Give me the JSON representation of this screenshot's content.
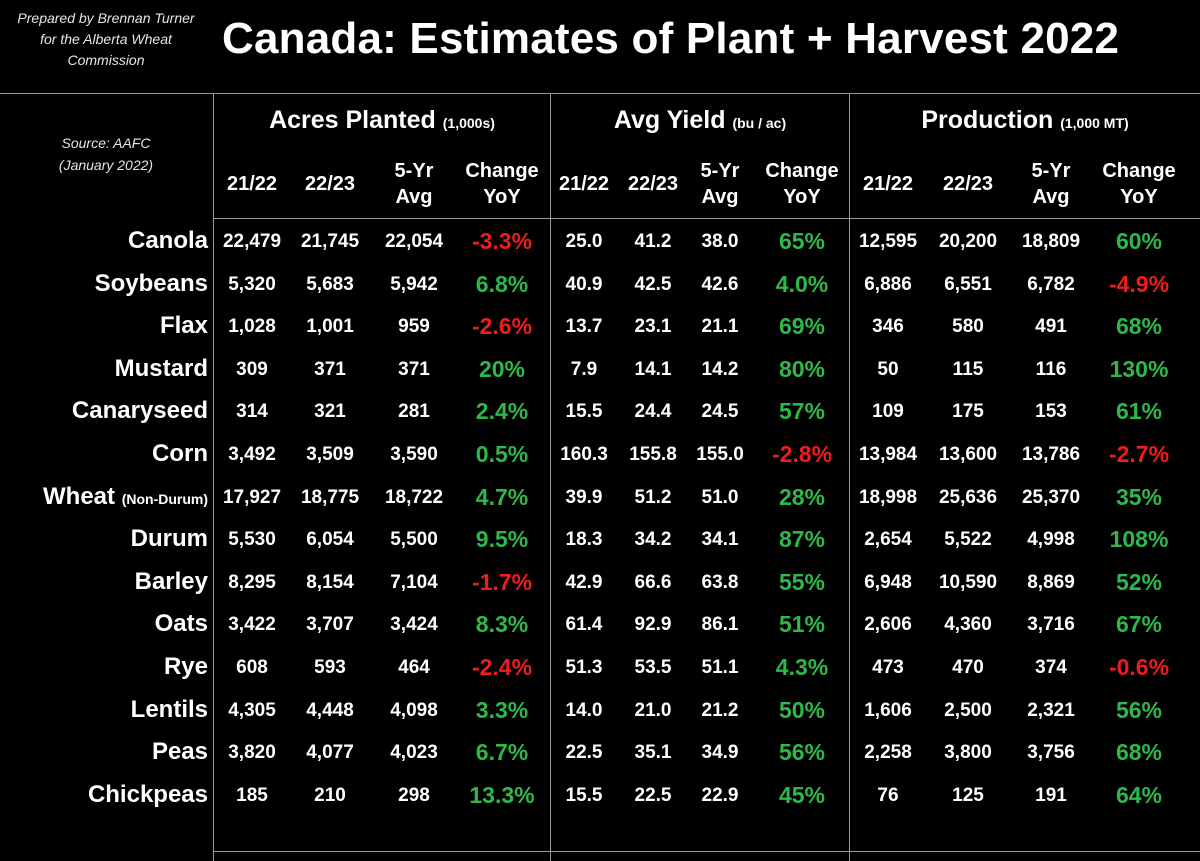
{
  "header": {
    "credit_lines": [
      "Prepared by Brennan Turner",
      "for the Alberta Wheat",
      "Commission"
    ],
    "title": "Canada: Estimates of Plant + Harvest 2022",
    "source_lines": [
      "Source: AAFC",
      "(January 2022)"
    ]
  },
  "colors": {
    "positive": "#2eb84a",
    "negative": "#ee1c1c",
    "background": "#000000",
    "text": "#ffffff",
    "grid": "#9a9a9a"
  },
  "chart_data": {
    "type": "table",
    "title": "Canada: Estimates of Plant + Harvest 2022",
    "groups": [
      {
        "key": "acres",
        "label": "Acres Planted",
        "unit": "(1,000s)"
      },
      {
        "key": "yield",
        "label": "Avg Yield",
        "unit": "(bu / ac)"
      },
      {
        "key": "production",
        "label": "Production",
        "unit": "(1,000 MT)"
      }
    ],
    "columns": [
      {
        "line1": "21/22",
        "line2": ""
      },
      {
        "line1": "22/23",
        "line2": ""
      },
      {
        "line1": "5-Yr",
        "line2": "Avg"
      },
      {
        "line1": "Change",
        "line2": "YoY"
      }
    ],
    "rows": [
      {
        "crop": "Canola",
        "note": "",
        "acres": [
          "22,479",
          "21,745",
          "22,054",
          "-3.3%"
        ],
        "yield": [
          "25.0",
          "41.2",
          "38.0",
          "65%"
        ],
        "production": [
          "12,595",
          "20,200",
          "18,809",
          "60%"
        ]
      },
      {
        "crop": "Soybeans",
        "note": "",
        "acres": [
          "5,320",
          "5,683",
          "5,942",
          "6.8%"
        ],
        "yield": [
          "40.9",
          "42.5",
          "42.6",
          "4.0%"
        ],
        "production": [
          "6,886",
          "6,551",
          "6,782",
          "-4.9%"
        ]
      },
      {
        "crop": "Flax",
        "note": "",
        "acres": [
          "1,028",
          "1,001",
          "959",
          "-2.6%"
        ],
        "yield": [
          "13.7",
          "23.1",
          "21.1",
          "69%"
        ],
        "production": [
          "346",
          "580",
          "491",
          "68%"
        ]
      },
      {
        "crop": "Mustard",
        "note": "",
        "acres": [
          "309",
          "371",
          "371",
          "20%"
        ],
        "yield": [
          "7.9",
          "14.1",
          "14.2",
          "80%"
        ],
        "production": [
          "50",
          "115",
          "116",
          "130%"
        ]
      },
      {
        "crop": "Canaryseed",
        "note": "",
        "acres": [
          "314",
          "321",
          "281",
          "2.4%"
        ],
        "yield": [
          "15.5",
          "24.4",
          "24.5",
          "57%"
        ],
        "production": [
          "109",
          "175",
          "153",
          "61%"
        ]
      },
      {
        "crop": "Corn",
        "note": "",
        "acres": [
          "3,492",
          "3,509",
          "3,590",
          "0.5%"
        ],
        "yield": [
          "160.3",
          "155.8",
          "155.0",
          "-2.8%"
        ],
        "production": [
          "13,984",
          "13,600",
          "13,786",
          "-2.7%"
        ]
      },
      {
        "crop": "Wheat",
        "note": "(Non-Durum)",
        "acres": [
          "17,927",
          "18,775",
          "18,722",
          "4.7%"
        ],
        "yield": [
          "39.9",
          "51.2",
          "51.0",
          "28%"
        ],
        "production": [
          "18,998",
          "25,636",
          "25,370",
          "35%"
        ]
      },
      {
        "crop": "Durum",
        "note": "",
        "acres": [
          "5,530",
          "6,054",
          "5,500",
          "9.5%"
        ],
        "yield": [
          "18.3",
          "34.2",
          "34.1",
          "87%"
        ],
        "production": [
          "2,654",
          "5,522",
          "4,998",
          "108%"
        ]
      },
      {
        "crop": "Barley",
        "note": "",
        "acres": [
          "8,295",
          "8,154",
          "7,104",
          "-1.7%"
        ],
        "yield": [
          "42.9",
          "66.6",
          "63.8",
          "55%"
        ],
        "production": [
          "6,948",
          "10,590",
          "8,869",
          "52%"
        ]
      },
      {
        "crop": "Oats",
        "note": "",
        "acres": [
          "3,422",
          "3,707",
          "3,424",
          "8.3%"
        ],
        "yield": [
          "61.4",
          "92.9",
          "86.1",
          "51%"
        ],
        "production": [
          "2,606",
          "4,360",
          "3,716",
          "67%"
        ]
      },
      {
        "crop": "Rye",
        "note": "",
        "acres": [
          "608",
          "593",
          "464",
          "-2.4%"
        ],
        "yield": [
          "51.3",
          "53.5",
          "51.1",
          "4.3%"
        ],
        "production": [
          "473",
          "470",
          "374",
          "-0.6%"
        ]
      },
      {
        "crop": "Lentils",
        "note": "",
        "acres": [
          "4,305",
          "4,448",
          "4,098",
          "3.3%"
        ],
        "yield": [
          "14.0",
          "21.0",
          "21.2",
          "50%"
        ],
        "production": [
          "1,606",
          "2,500",
          "2,321",
          "56%"
        ]
      },
      {
        "crop": "Peas",
        "note": "",
        "acres": [
          "3,820",
          "4,077",
          "4,023",
          "6.7%"
        ],
        "yield": [
          "22.5",
          "35.1",
          "34.9",
          "56%"
        ],
        "production": [
          "2,258",
          "3,800",
          "3,756",
          "68%"
        ]
      },
      {
        "crop": "Chickpeas",
        "note": "",
        "acres": [
          "185",
          "210",
          "298",
          "13.3%"
        ],
        "yield": [
          "15.5",
          "22.5",
          "22.9",
          "45%"
        ],
        "production": [
          "76",
          "125",
          "191",
          "64%"
        ]
      }
    ]
  }
}
